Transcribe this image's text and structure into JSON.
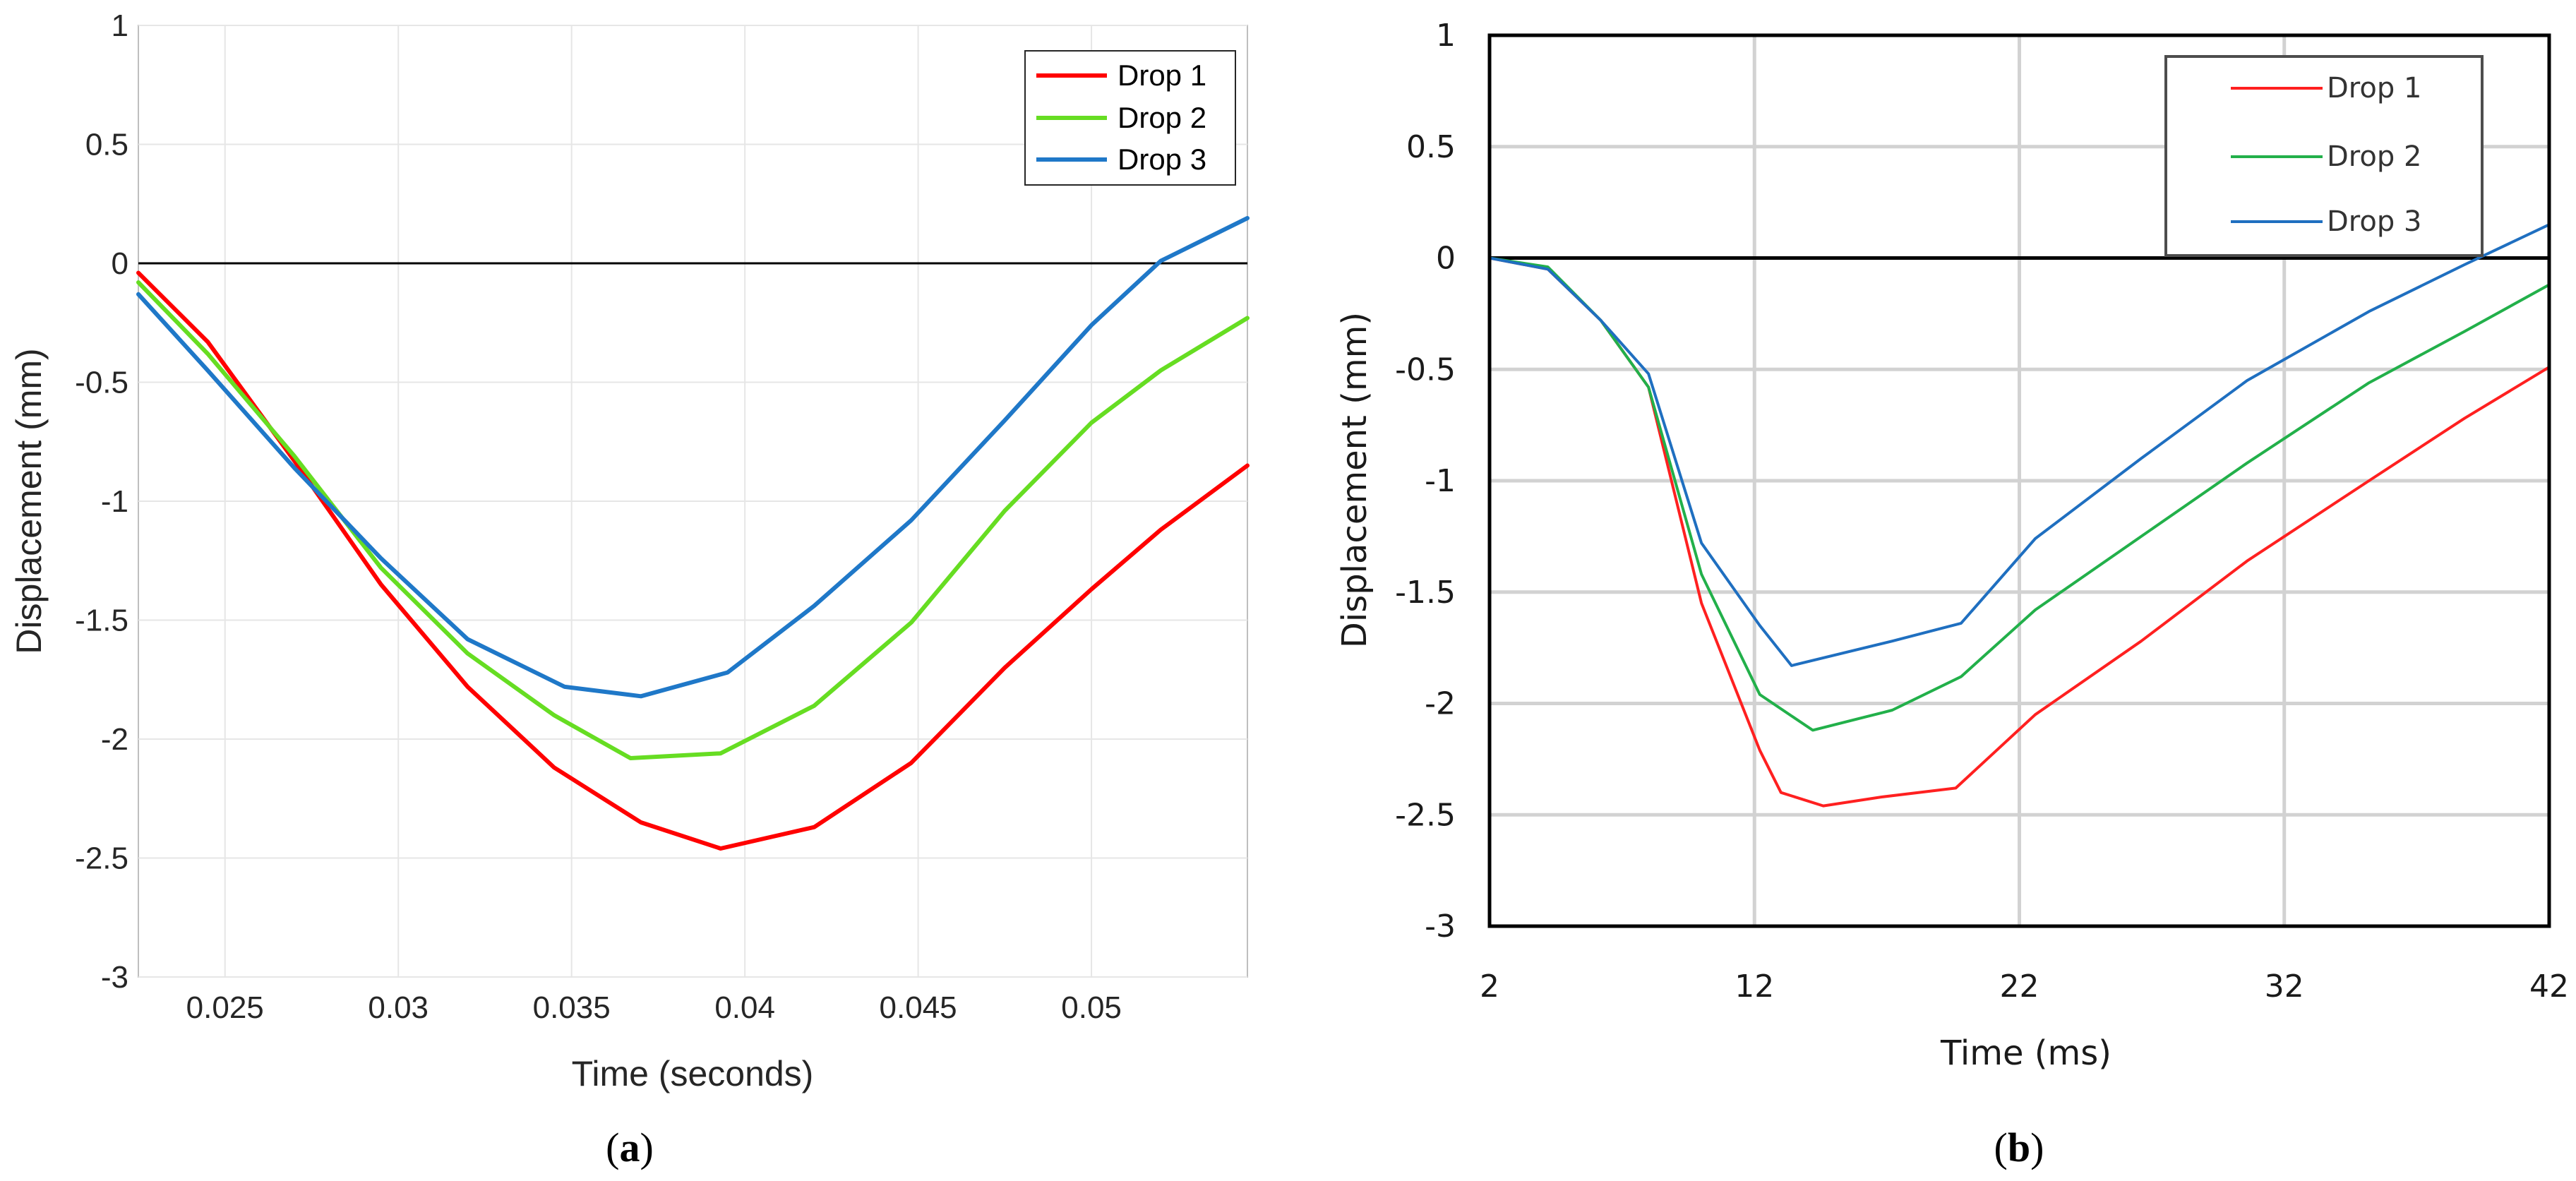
{
  "chart_data": [
    {
      "type": "line",
      "panel": "a",
      "caption_letter": "a",
      "xlabel": "Time (seconds)",
      "ylabel": "Displacement (mm)",
      "xlim": [
        0.0225,
        0.0545
      ],
      "ylim": [
        -3,
        1
      ],
      "xticks": [
        0.025,
        0.03,
        0.035,
        0.04,
        0.045,
        0.05
      ],
      "xtick_labels": [
        "0.025",
        "0.03",
        "0.035",
        "0.04",
        "0.045",
        "0.05"
      ],
      "yticks": [
        1,
        0.5,
        0,
        -0.5,
        -1,
        -1.5,
        -2,
        -2.5,
        -3
      ],
      "ytick_labels": [
        "1",
        "0.5",
        "0",
        "-0.5",
        "-1",
        "-1.5",
        "-2",
        "-2.5",
        "-3"
      ],
      "grid": true,
      "legend_position": "top-right",
      "series": [
        {
          "name": "Drop 1",
          "color": "#ff0000",
          "x": [
            0.0225,
            0.0245,
            0.027,
            0.0295,
            0.032,
            0.0345,
            0.037,
            0.0393,
            0.042,
            0.0448,
            0.0475,
            0.05,
            0.052,
            0.0545
          ],
          "y": [
            -0.04,
            -0.33,
            -0.83,
            -1.35,
            -1.78,
            -2.12,
            -2.35,
            -2.46,
            -2.37,
            -2.1,
            -1.7,
            -1.37,
            -1.12,
            -0.85
          ]
        },
        {
          "name": "Drop 2",
          "color": "#66dd22",
          "x": [
            0.0225,
            0.0245,
            0.027,
            0.0295,
            0.032,
            0.0345,
            0.0367,
            0.0393,
            0.042,
            0.0448,
            0.0475,
            0.05,
            0.052,
            0.0545
          ],
          "y": [
            -0.08,
            -0.38,
            -0.81,
            -1.28,
            -1.64,
            -1.9,
            -2.08,
            -2.06,
            -1.86,
            -1.51,
            -1.04,
            -0.67,
            -0.45,
            -0.23
          ]
        },
        {
          "name": "Drop 3",
          "color": "#1f78c8",
          "x": [
            0.0225,
            0.0245,
            0.027,
            0.0295,
            0.032,
            0.0348,
            0.037,
            0.0395,
            0.042,
            0.0448,
            0.0475,
            0.05,
            0.052,
            0.0545
          ],
          "y": [
            -0.13,
            -0.45,
            -0.86,
            -1.24,
            -1.58,
            -1.78,
            -1.82,
            -1.72,
            -1.44,
            -1.08,
            -0.66,
            -0.26,
            0.01,
            0.19
          ]
        }
      ]
    },
    {
      "type": "line",
      "panel": "b",
      "caption_letter": "b",
      "xlabel": "Time (ms)",
      "ylabel": "Displacement (mm)",
      "xlim": [
        2,
        42
      ],
      "ylim": [
        -3,
        1
      ],
      "xticks": [
        2,
        12,
        22,
        32,
        42
      ],
      "xtick_labels": [
        "2",
        "12",
        "22",
        "32",
        "42"
      ],
      "yticks": [
        1,
        0.5,
        0,
        -0.5,
        -1,
        -1.5,
        -2,
        -2.5,
        -3
      ],
      "ytick_labels": [
        "1",
        "0.5",
        "0",
        "-0.5",
        "-1",
        "-1.5",
        "-2",
        "-2.5",
        "-3"
      ],
      "grid": true,
      "legend_position": "top-right",
      "series": [
        {
          "name": "Drop 1",
          "color": "#ff2020",
          "x": [
            2,
            4.2,
            6.2,
            8,
            10,
            12.2,
            13,
            14.6,
            16.8,
            19.6,
            22.6,
            26.6,
            30.6,
            35.2,
            38.8,
            42
          ],
          "y": [
            0,
            -0.05,
            -0.28,
            -0.58,
            -1.55,
            -2.21,
            -2.4,
            -2.46,
            -2.42,
            -2.38,
            -2.05,
            -1.72,
            -1.36,
            -1.0,
            -0.72,
            -0.49
          ]
        },
        {
          "name": "Drop 2",
          "color": "#22b04a",
          "x": [
            2,
            4.2,
            6.2,
            8,
            10,
            12.2,
            14.2,
            17.2,
            19.8,
            22.6,
            26.6,
            30.6,
            35.2,
            38.8,
            42
          ],
          "y": [
            0,
            -0.04,
            -0.28,
            -0.58,
            -1.42,
            -1.96,
            -2.12,
            -2.03,
            -1.88,
            -1.58,
            -1.25,
            -0.92,
            -0.56,
            -0.33,
            -0.12
          ]
        },
        {
          "name": "Drop 3",
          "color": "#1f6fc0",
          "x": [
            2,
            4.2,
            6.2,
            8,
            10,
            12.2,
            13.4,
            17.2,
            19.8,
            22.6,
            26.6,
            30.6,
            35.2,
            38.8,
            42
          ],
          "y": [
            0,
            -0.05,
            -0.28,
            -0.52,
            -1.28,
            -1.65,
            -1.83,
            -1.72,
            -1.64,
            -1.26,
            -0.9,
            -0.55,
            -0.24,
            -0.03,
            0.15
          ]
        }
      ]
    }
  ]
}
